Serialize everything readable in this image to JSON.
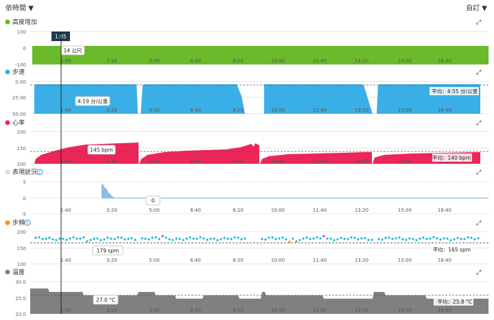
{
  "header": {
    "time_selector": "依時間",
    "time_selector_caret": "▼",
    "custom_selector": "自訂",
    "custom_selector_caret": "▼"
  },
  "cursor_time": "1:05",
  "x_ticks": [
    "1:40",
    "3:20",
    "5:00",
    "6:40",
    "8:20",
    "10:00",
    "11:40",
    "13:20",
    "15:00",
    "16:40"
  ],
  "colors": {
    "elevation": "#6aba2b",
    "pace": "#3aaee6",
    "heart_rate": "#ec2659",
    "performance": "#8dbbe6",
    "cadence_main": "#21b5e0",
    "temperature": "#808080",
    "cursor_label_bg": "#1e3a4c"
  },
  "panels": [
    {
      "id": "elevation",
      "title": "高度增加",
      "dot_color": "#6aba2b",
      "y_ticks": [
        "100",
        "0",
        "-100"
      ],
      "tooltip": "14 公尺",
      "average_label": ""
    },
    {
      "id": "pace",
      "title": "步速",
      "dot_color": "#3aaee6",
      "y_ticks": [
        "0:00",
        "25:00",
        "50:00"
      ],
      "tooltip": "4:19 分/公里",
      "average_label": "平均：4:55 分/公里"
    },
    {
      "id": "heart_rate",
      "title": "心率",
      "dot_color": "#ec2659",
      "y_ticks": [
        "200",
        "150",
        "100"
      ],
      "tooltip": "145 bpm",
      "average_label": "平均：140 bpm"
    },
    {
      "id": "performance",
      "title": "表現狀況",
      "dot_color": "#dddddd",
      "has_help": true,
      "y_ticks": [
        "5",
        "0",
        "-5"
      ],
      "tooltip": "0",
      "average_label": ""
    },
    {
      "id": "cadence",
      "title": "步頻",
      "dot_color": "#f7941d",
      "has_help": true,
      "y_ticks": [
        "200",
        "150",
        "100"
      ],
      "tooltip": "179 spm",
      "average_label": "平均：165 spm"
    },
    {
      "id": "temperature",
      "title": "溫度",
      "dot_color": "#808080",
      "y_ticks": [
        "30.0",
        "25.0",
        "20.0"
      ],
      "tooltip": "27.0 °C",
      "average_label": "平均：25.8 °C"
    }
  ],
  "help_glyph": "?",
  "expand_glyph": "⤢"
}
